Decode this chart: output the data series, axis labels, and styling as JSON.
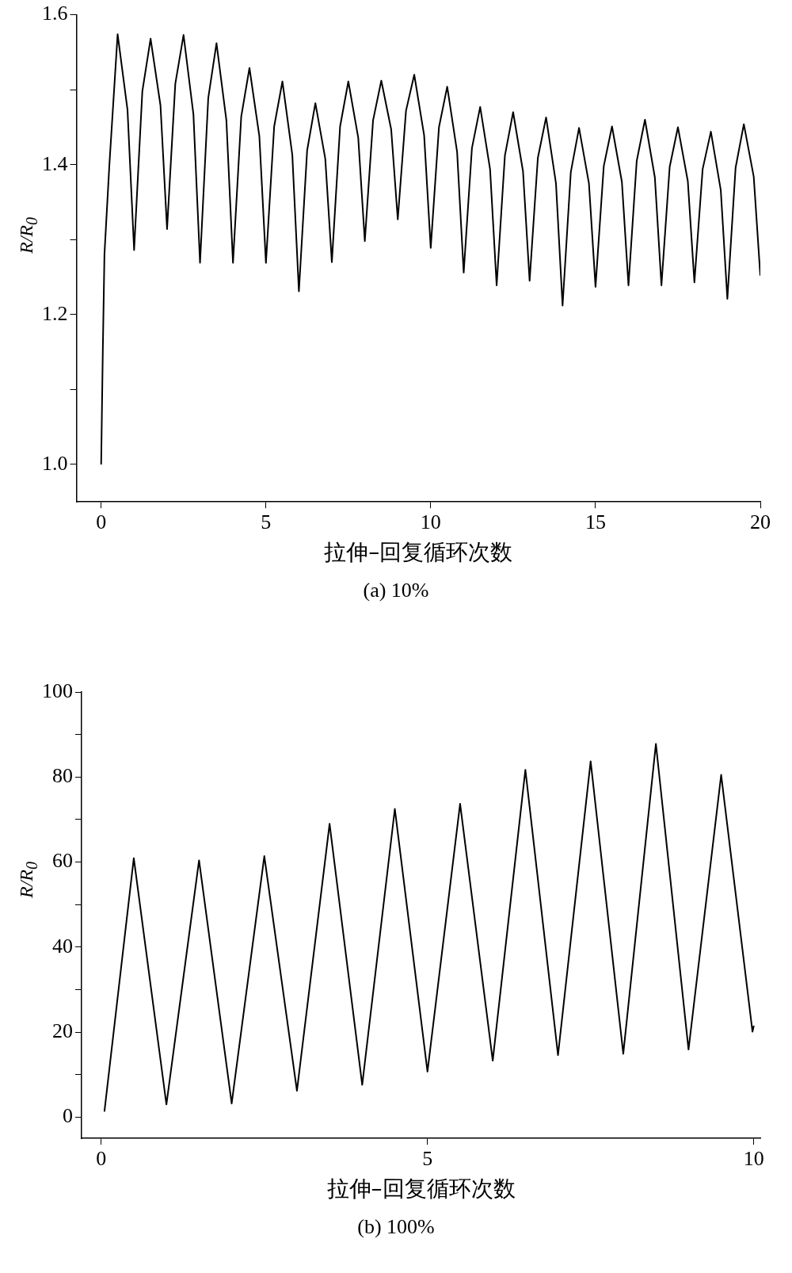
{
  "chart_data": [
    {
      "type": "line",
      "xlabel": "拉伸–回复循环次数",
      "ylabel": "R/R$_{0}$",
      "annotations": [
        "(a) 10%"
      ],
      "xlim": [
        -0.75,
        20
      ],
      "ylim": [
        0.95,
        1.6
      ],
      "xticks": [
        0,
        5,
        10,
        15,
        20
      ],
      "yticks": [
        {
          "value": 1.0,
          "label": "1.0"
        },
        {
          "value": 1.1,
          "label": null
        },
        {
          "value": 1.2,
          "label": "1.2"
        },
        {
          "value": 1.3,
          "label": null
        },
        {
          "value": 1.4,
          "label": "1.4"
        },
        {
          "value": 1.5,
          "label": null
        },
        {
          "value": 1.6,
          "label": "1.6"
        }
      ],
      "grid": false,
      "legend": false,
      "marker": "none",
      "line_style": "solid",
      "series": [
        {
          "color": "#000000",
          "x": [
            0,
            0.05,
            0.1,
            0.25,
            0.5,
            0.8,
            1,
            1.25,
            1.5,
            1.8,
            2,
            2.25,
            2.5,
            2.8,
            3,
            3.25,
            3.5,
            3.8,
            4,
            4.25,
            4.5,
            4.8,
            5,
            5.25,
            5.5,
            5.8,
            6,
            6.25,
            6.5,
            6.8,
            7,
            7.25,
            7.5,
            7.8,
            8,
            8.25,
            8.5,
            8.8,
            9,
            9.25,
            9.5,
            9.8,
            10,
            10.25,
            10.5,
            10.8,
            11,
            11.25,
            11.5,
            11.8,
            12,
            12.25,
            12.5,
            12.8,
            13,
            13.25,
            13.5,
            13.8,
            14,
            14.25,
            14.5,
            14.8,
            15,
            15.25,
            15.5,
            15.8,
            16,
            16.25,
            16.5,
            16.8,
            17,
            17.25,
            17.5,
            17.8,
            18,
            18.25,
            18.5,
            18.8,
            19,
            19.25,
            19.5,
            19.8,
            20
          ],
          "values": [
            1.0,
            1.15,
            1.28,
            1.4,
            1.574,
            1.473,
            1.286,
            1.498,
            1.568,
            1.479,
            1.314,
            1.508,
            1.573,
            1.467,
            1.269,
            1.489,
            1.562,
            1.459,
            1.269,
            1.464,
            1.529,
            1.438,
            1.269,
            1.451,
            1.511,
            1.413,
            1.231,
            1.419,
            1.482,
            1.408,
            1.27,
            1.451,
            1.511,
            1.436,
            1.298,
            1.459,
            1.512,
            1.447,
            1.327,
            1.472,
            1.52,
            1.439,
            1.289,
            1.45,
            1.504,
            1.417,
            1.256,
            1.422,
            1.477,
            1.394,
            1.239,
            1.412,
            1.47,
            1.391,
            1.245,
            1.409,
            1.463,
            1.375,
            1.212,
            1.39,
            1.449,
            1.375,
            1.237,
            1.398,
            1.451,
            1.377,
            1.239,
            1.405,
            1.46,
            1.383,
            1.239,
            1.397,
            1.45,
            1.378,
            1.243,
            1.394,
            1.444,
            1.366,
            1.221,
            1.396,
            1.454,
            1.384,
            1.252
          ]
        }
      ]
    },
    {
      "type": "line",
      "xlabel": "拉伸–回复循环次数",
      "ylabel": "R/R$_{0}$",
      "annotations": [
        "(b) 100%"
      ],
      "xlim": [
        -0.3,
        10.1
      ],
      "ylim": [
        -5,
        100
      ],
      "xticks": [
        0,
        5,
        10
      ],
      "yticks": [
        0,
        {
          "value": 10,
          "label": null
        },
        20,
        {
          "value": 30,
          "label": null
        },
        40,
        {
          "value": 50,
          "label": null
        },
        60,
        {
          "value": 70,
          "label": null
        },
        80,
        {
          "value": 90,
          "label": null
        },
        100
      ],
      "grid": false,
      "legend": false,
      "marker": "none",
      "line_style": "solid",
      "series": [
        {
          "color": "#000000",
          "x": [
            0.05,
            0.5,
            1,
            1.5,
            2,
            2.5,
            3,
            3.5,
            4,
            4.5,
            5,
            5.5,
            6,
            6.5,
            7,
            7.5,
            8,
            8.5,
            9,
            9.5,
            9.98,
            10
          ],
          "values": [
            1.3,
            60.9,
            3.0,
            60.4,
            3.2,
            61.4,
            6.2,
            69.0,
            7.6,
            72.5,
            10.7,
            73.7,
            13.3,
            81.7,
            14.6,
            83.7,
            14.9,
            87.8,
            15.9,
            80.5,
            20.1,
            21.5
          ]
        }
      ]
    }
  ]
}
